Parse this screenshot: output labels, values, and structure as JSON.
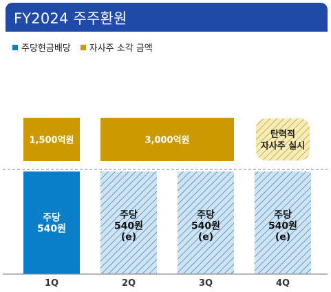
{
  "header": {
    "title": "FY2024 주주환원"
  },
  "colors": {
    "header_bg": "#1f4aa8",
    "dividend": "#0a7fc9",
    "dividend_hatch_bg": "#cfe3f2",
    "dividend_hatch_line": "#5f9ec9",
    "buyback": "#cc9a00",
    "buyback_hatch_bg": "#f6ecb8",
    "buyback_hatch_line": "#ccb04a"
  },
  "chart_data": {
    "type": "bar",
    "categories": [
      "1Q",
      "2Q",
      "3Q",
      "4Q"
    ],
    "legend": [
      "주당현금배당",
      "자사주 소각 금액"
    ],
    "legend_position": "top-left",
    "dividend_bars": [
      {
        "category": "1Q",
        "label_lines": [
          "주당",
          "540원"
        ],
        "estimated": false
      },
      {
        "category": "2Q",
        "label_lines": [
          "주당",
          "540원",
          "(e)"
        ],
        "estimated": true
      },
      {
        "category": "3Q",
        "label_lines": [
          "주당",
          "540원",
          "(e)"
        ],
        "estimated": true
      },
      {
        "category": "4Q",
        "label_lines": [
          "주당",
          "540원",
          "(e)"
        ],
        "estimated": true
      }
    ],
    "buyback_blocks": [
      {
        "categories": [
          "1Q"
        ],
        "label_lines": [
          "1,500억원"
        ],
        "style": "solid"
      },
      {
        "categories": [
          "2Q",
          "3Q"
        ],
        "label_lines": [
          "3,000억원"
        ],
        "style": "solid"
      },
      {
        "categories": [
          "4Q"
        ],
        "label_lines": [
          "탄력적",
          "자사주 실시"
        ],
        "style": "hatched"
      }
    ]
  }
}
